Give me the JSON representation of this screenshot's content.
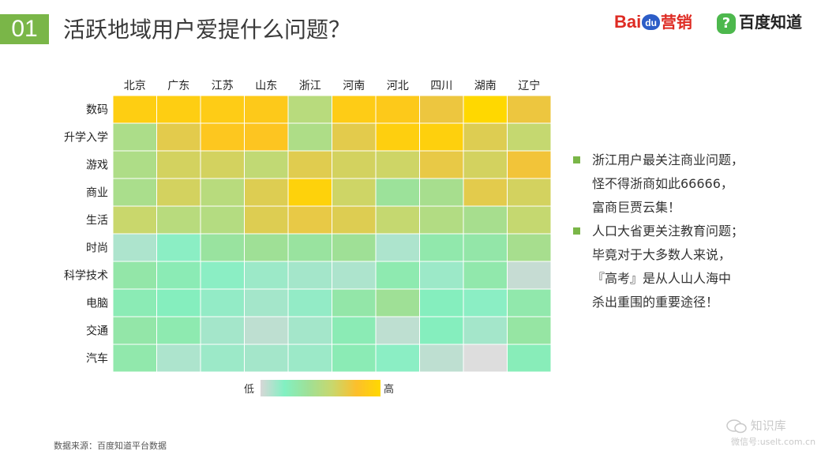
{
  "header": {
    "number": "01",
    "title": "活跃地域用户爱提什么问题？",
    "logo_baidu": {
      "bai": "Bai",
      "du": "du",
      "suffix": "营销"
    },
    "logo_zhidao": {
      "icon": "?",
      "text": "百度知道"
    }
  },
  "chart_data": {
    "type": "heatmap",
    "x": [
      "北京",
      "广东",
      "江苏",
      "山东",
      "浙江",
      "河南",
      "河北",
      "四川",
      "湖南",
      "辽宁"
    ],
    "y": [
      "数码",
      "升学入学",
      "游戏",
      "商业",
      "生活",
      "时尚",
      "科学技术",
      "电脑",
      "交通",
      "汽车"
    ],
    "values": [
      [
        0.92,
        0.92,
        0.9,
        0.88,
        0.52,
        0.9,
        0.88,
        0.74,
        1.0,
        0.74
      ],
      [
        0.46,
        0.7,
        0.86,
        0.85,
        0.47,
        0.7,
        0.93,
        0.94,
        0.68,
        0.58
      ],
      [
        0.47,
        0.64,
        0.64,
        0.56,
        0.69,
        0.64,
        0.62,
        0.72,
        0.64,
        0.76
      ],
      [
        0.45,
        0.64,
        0.52,
        0.68,
        0.95,
        0.62,
        0.38,
        0.44,
        0.7,
        0.64
      ],
      [
        0.6,
        0.52,
        0.5,
        0.68,
        0.72,
        0.68,
        0.58,
        0.49,
        0.44,
        0.58
      ],
      [
        0.1,
        0.18,
        0.36,
        0.4,
        0.36,
        0.4,
        0.1,
        0.3,
        0.32,
        0.44
      ],
      [
        0.32,
        0.26,
        0.18,
        0.14,
        0.12,
        0.1,
        0.28,
        0.14,
        0.3,
        0.04
      ],
      [
        0.26,
        0.22,
        0.16,
        0.12,
        0.16,
        0.32,
        0.4,
        0.22,
        0.18,
        0.3
      ],
      [
        0.32,
        0.28,
        0.12,
        0.06,
        0.12,
        0.26,
        0.06,
        0.22,
        0.12,
        0.34
      ],
      [
        0.3,
        0.1,
        0.14,
        0.12,
        0.14,
        0.26,
        0.18,
        0.06,
        -1,
        0.24
      ]
    ],
    "color_scale": [
      "#d7d7d7",
      "#82f0c2",
      "#9fe096",
      "#c9d76c",
      "#fcbf2c",
      "#ffd800"
    ],
    "missing_color": "#dddddd",
    "legend": {
      "low": "低",
      "high": "高"
    }
  },
  "notes": [
    {
      "lines": [
        "浙江用户最关注商业问题，",
        "怪不得浙商如此66666，",
        "富商巨贾云集！"
      ]
    },
    {
      "lines": [
        "人口大省更关注教育问题；",
        "毕竟对于大多数人来说，",
        "『高考』是从人山人海中",
        "杀出重围的重要途径！"
      ]
    }
  ],
  "source": "数据来源：百度知道平台数据",
  "watermark": {
    "title": "知识库",
    "sub": "微信号:uselt.com.cn"
  }
}
